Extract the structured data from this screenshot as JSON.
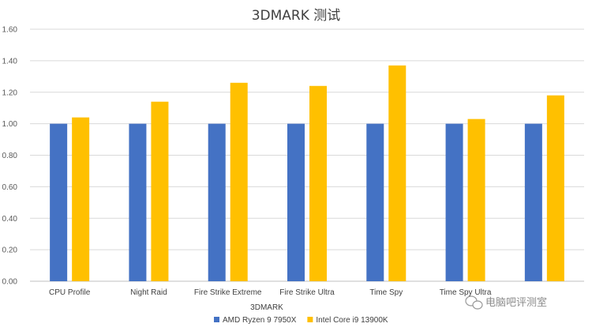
{
  "chart_data": {
    "type": "bar",
    "title": "3DMARK 测试",
    "xlabel": "3DMARK",
    "ylabel": "",
    "ylim": [
      0,
      1.6
    ],
    "yticks": [
      "0.00",
      "0.20",
      "0.40",
      "0.60",
      "0.80",
      "1.00",
      "1.20",
      "1.40",
      "1.60"
    ],
    "categories": [
      "CPU Profile",
      "Night Raid",
      "Fire Strike Extreme",
      "Fire Strike Ultra",
      "Time Spy",
      "Time Spy Ultra",
      ""
    ],
    "series": [
      {
        "name": "AMD Ryzen 9 7950X",
        "color": "#4472c4",
        "values": [
          1.0,
          1.0,
          1.0,
          1.0,
          1.0,
          1.0,
          1.0
        ]
      },
      {
        "name": "Intel Core i9 13900K",
        "color": "#ffc000",
        "values": [
          1.04,
          1.14,
          1.26,
          1.24,
          1.37,
          1.03,
          1.18
        ]
      }
    ],
    "grid": true,
    "legend_position": "bottom"
  },
  "watermark": {
    "text": "电脑吧评测室",
    "icon": "wechat-icon"
  }
}
